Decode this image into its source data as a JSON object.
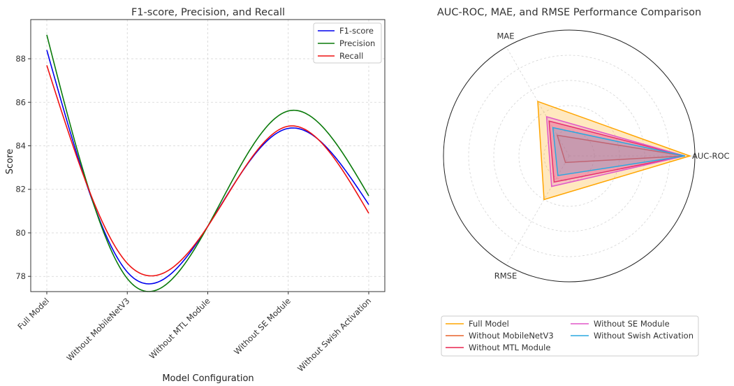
{
  "chart_data": [
    {
      "type": "line",
      "title": "F1-score, Precision, and Recall",
      "xlabel": "Model Configuration",
      "ylabel": "Score",
      "categories": [
        "Full Model",
        "Without MobileNetV3",
        "Without MTL Module",
        "Without SE Module",
        "Without Swish Activation"
      ],
      "ylim": [
        77.3,
        89.8
      ],
      "yticks": [
        78,
        80,
        82,
        84,
        86,
        88
      ],
      "grid": true,
      "legend_position": "top-right",
      "series": [
        {
          "name": "F1-score",
          "color": "#0000ee",
          "values": [
            88.4,
            78.2,
            80.3,
            84.8,
            81.3
          ]
        },
        {
          "name": "Precision",
          "color": "#0a7a0a",
          "values": [
            89.1,
            77.9,
            80.3,
            85.6,
            81.7
          ]
        },
        {
          "name": "Recall",
          "color": "#ee1111",
          "values": [
            87.7,
            78.6,
            80.3,
            84.9,
            80.9
          ]
        }
      ]
    },
    {
      "type": "radar",
      "title": "AUC-ROC, MAE, and RMSE Performance Comparison",
      "axes": [
        "AUC-ROC",
        "MAE",
        "RMSE"
      ],
      "rmax": 1.0,
      "grid": true,
      "legend_position": "bottom",
      "series": [
        {
          "name": "Full Model",
          "color": "#ffa500",
          "fill_opacity": 0.25,
          "values": [
            0.96,
            0.5,
            0.4
          ]
        },
        {
          "name": "Without MobileNetV3",
          "color": "#e8622a",
          "fill_opacity": 0.1,
          "values": [
            0.92,
            0.19,
            0.06
          ]
        },
        {
          "name": "Without MTL Module",
          "color": "#e8234f",
          "fill_opacity": 0.25,
          "values": [
            0.92,
            0.32,
            0.24
          ]
        },
        {
          "name": "Without SE Module",
          "color": "#e057c8",
          "fill_opacity": 0.25,
          "values": [
            0.92,
            0.36,
            0.28
          ]
        },
        {
          "name": "Without Swish Activation",
          "color": "#2aa8e0",
          "fill_opacity": 0.2,
          "values": [
            0.92,
            0.26,
            0.18
          ]
        }
      ]
    }
  ]
}
